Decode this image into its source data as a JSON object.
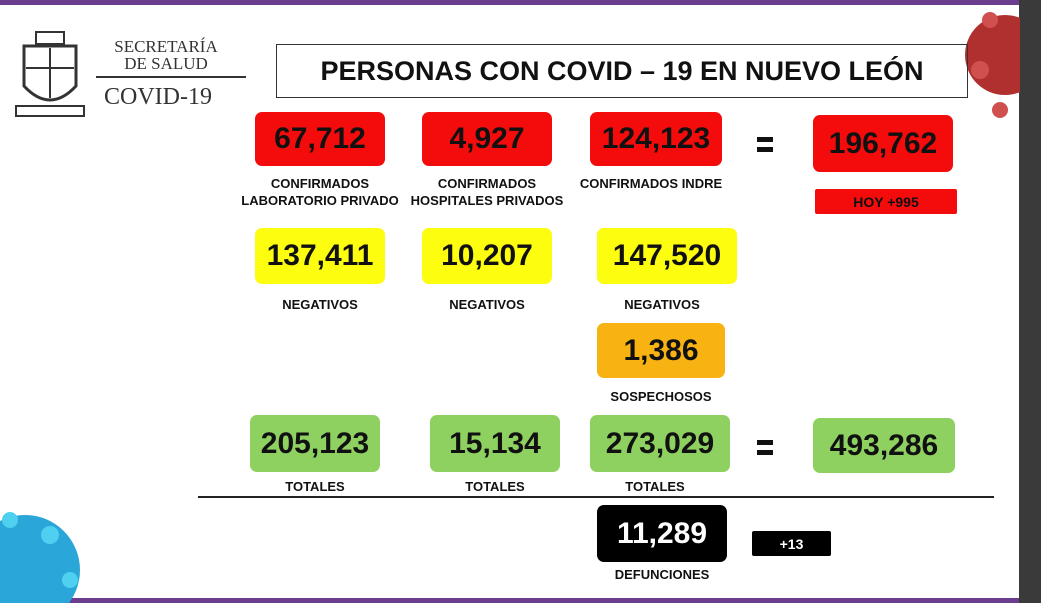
{
  "header": {
    "logo": {
      "line1": "SECRETARÍA",
      "line2": "DE SALUD",
      "line3": "COVID-19"
    },
    "title": "PERSONAS CON COVID – 19 EN NUEVO LEÓN"
  },
  "confirmed": {
    "items": [
      {
        "value": "67,712",
        "label": [
          "CONFIRMADOS",
          "LABORATORIO PRIVADO"
        ]
      },
      {
        "value": "4,927",
        "label": [
          "CONFIRMADOS",
          "HOSPITALES PRIVADOS"
        ]
      },
      {
        "value": "124,123",
        "label": [
          "CONFIRMADOS INDRE"
        ]
      }
    ],
    "total": "196,762",
    "today": "HOY +995"
  },
  "negatives": {
    "items": [
      {
        "value": "137,411",
        "label": "NEGATIVOS"
      },
      {
        "value": "10,207",
        "label": "NEGATIVOS"
      },
      {
        "value": "147,520",
        "label": "NEGATIVOS"
      }
    ]
  },
  "suspects": {
    "value": "1,386",
    "label": "SOSPECHOSOS"
  },
  "totals": {
    "items": [
      {
        "value": "205,123",
        "label": "TOTALES"
      },
      {
        "value": "15,134",
        "label": "TOTALES"
      },
      {
        "value": "273,029",
        "label": "TOTALES"
      }
    ],
    "total": "493,286"
  },
  "deaths": {
    "value": "11,289",
    "label": "DEFUNCIONES",
    "today": "+13"
  }
}
